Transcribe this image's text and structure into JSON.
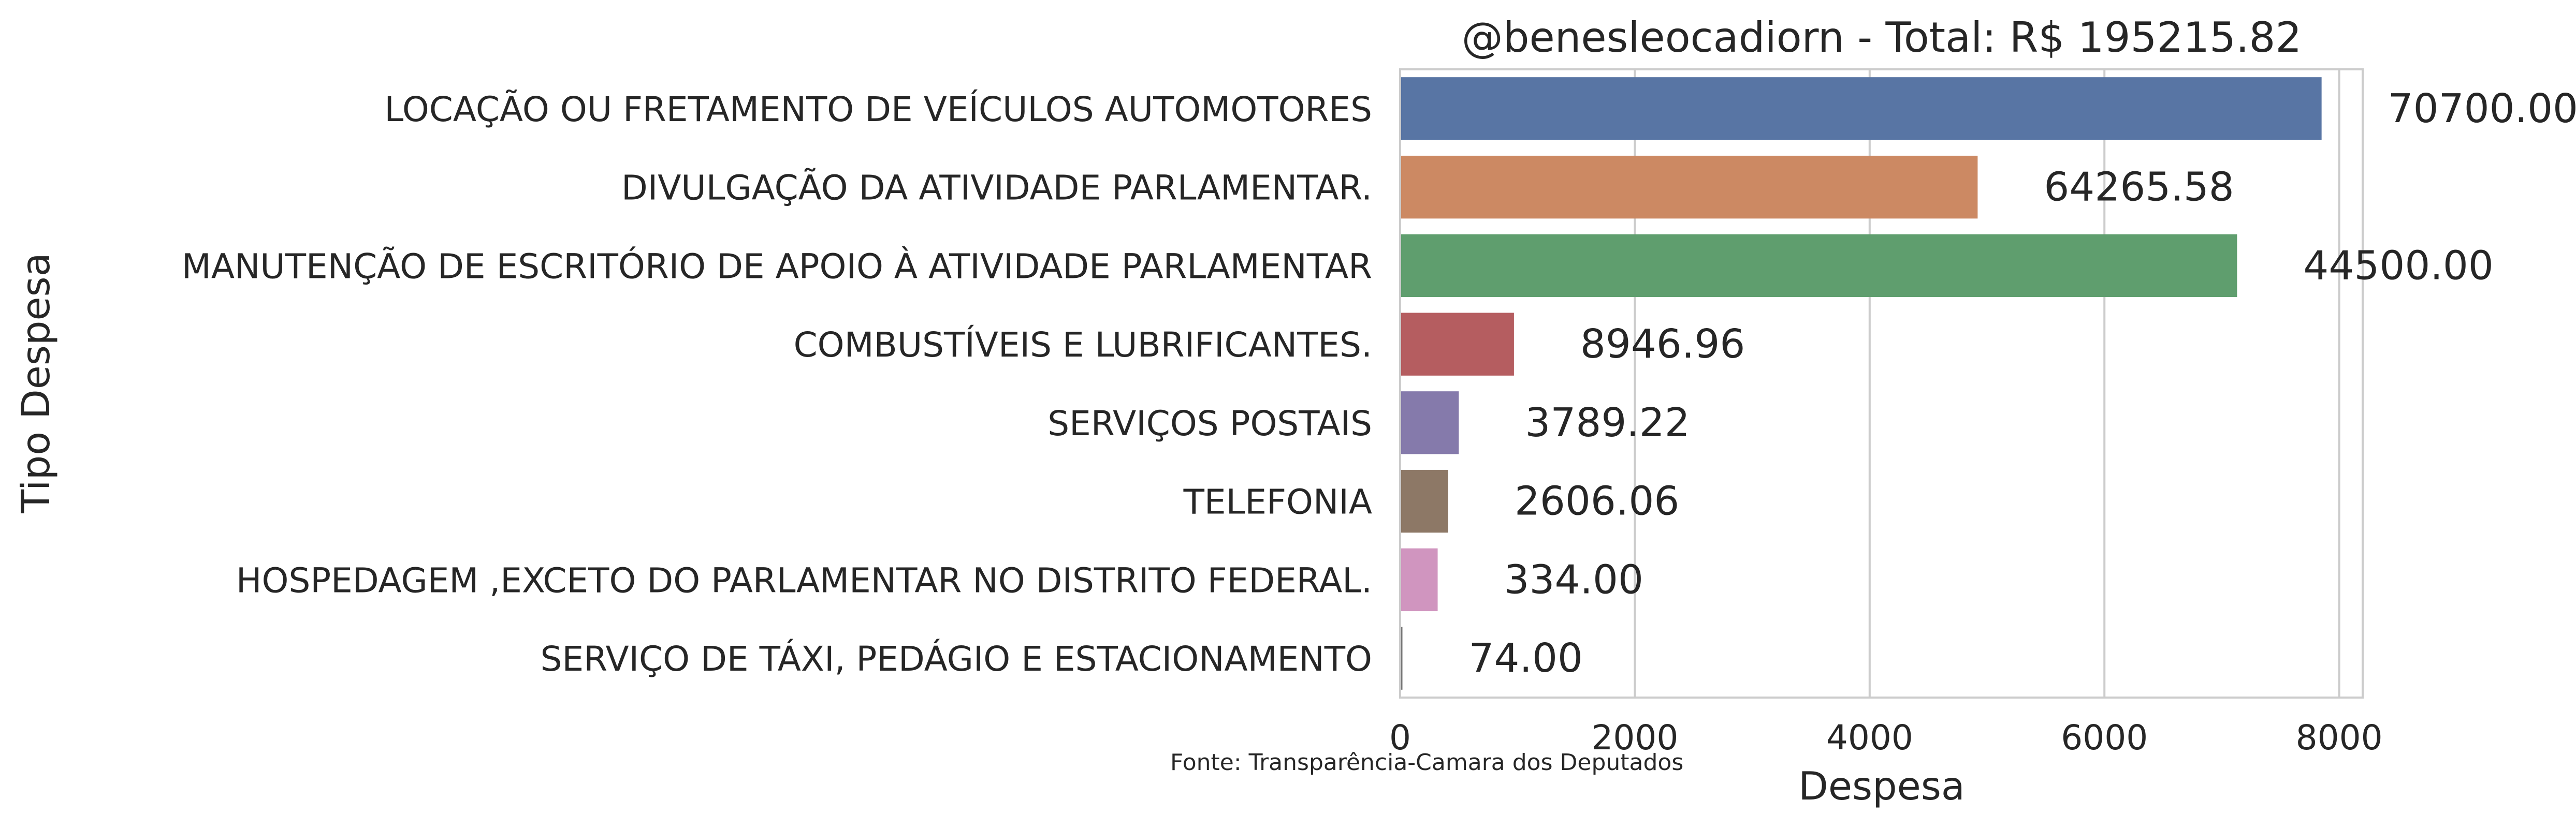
{
  "chart_data": {
    "type": "bar",
    "orientation": "horizontal",
    "title": "@benesleocadiorn - Total: R$ 195215.82",
    "xlabel": "Despesa",
    "ylabel": "Tipo Despesa",
    "source": "Fonte: Transparência-Camara dos Deputados",
    "xlim": [
      0,
      8200
    ],
    "xticks": [
      0,
      2000,
      4000,
      6000,
      8000
    ],
    "xtick_labels": [
      "0",
      "2000",
      "4000",
      "6000",
      "8000"
    ],
    "grid": true,
    "categories": [
      "LOCAÇÃO OU FRETAMENTO DE VEÍCULOS AUTOMOTORES",
      "DIVULGAÇÃO DA ATIVIDADE PARLAMENTAR.",
      "MANUTENÇÃO DE ESCRITÓRIO DE APOIO À ATIVIDADE PARLAMENTAR",
      "COMBUSTÍVEIS E LUBRIFICANTES.",
      "SERVIÇOS POSTAIS",
      "TELEFONIA",
      "HOSPEDAGEM ,EXCETO DO PARLAMENTAR NO DISTRITO FEDERAL.",
      "SERVIÇO DE TÁXI, PEDÁGIO E ESTACIONAMENTO"
    ],
    "values": [
      7850,
      4920,
      7130,
      970,
      500,
      410,
      320,
      20
    ],
    "value_labels": [
      "70700.00",
      "64265.58",
      "44500.00",
      "8946.96",
      "3789.22",
      "2606.06",
      "334.00",
      "74.00"
    ],
    "colors": [
      "#5875a4",
      "#cc8963",
      "#5f9e6e",
      "#b55d60",
      "#857aab",
      "#8d7866",
      "#d095bf",
      "#797979"
    ]
  }
}
